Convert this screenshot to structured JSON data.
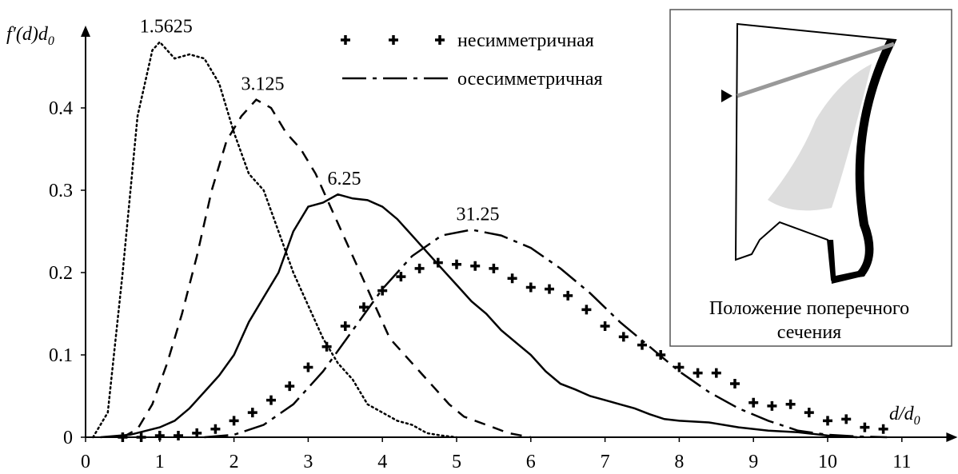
{
  "chart_data": {
    "type": "line",
    "y_label": {
      "main": "f′(d)d",
      "sub": "0"
    },
    "x_label": {
      "main": "d/d",
      "sub": "0"
    },
    "xlim": [
      0,
      11.75
    ],
    "xticks": [
      0,
      1,
      2,
      3,
      4,
      5,
      6,
      7,
      8,
      9,
      10,
      11
    ],
    "ylim": [
      0,
      0.5
    ],
    "yticks": [
      0,
      0.1,
      0.2,
      0.3,
      0.4
    ],
    "grid": false,
    "legend": [
      {
        "label": "несимметричная",
        "style": "plus"
      },
      {
        "label": "осесимметричная",
        "style": "dashdot"
      }
    ],
    "series": [
      {
        "name": "1.5625",
        "style": "dotted",
        "color": "#000000",
        "x": [
          0.1,
          0.3,
          0.5,
          0.7,
          0.9,
          1.0,
          1.2,
          1.4,
          1.6,
          1.8,
          2.0,
          2.2,
          2.4,
          2.6,
          2.8,
          3.0,
          3.2,
          3.4,
          3.6,
          3.8,
          4.0,
          4.2,
          4.4,
          4.6,
          4.8,
          5.0
        ],
        "values": [
          0,
          0.03,
          0.2,
          0.39,
          0.47,
          0.48,
          0.46,
          0.465,
          0.46,
          0.43,
          0.37,
          0.32,
          0.3,
          0.25,
          0.2,
          0.16,
          0.12,
          0.09,
          0.07,
          0.04,
          0.03,
          0.02,
          0.015,
          0.005,
          0.002,
          0
        ]
      },
      {
        "name": "3.125",
        "style": "dashed",
        "color": "#000000",
        "x": [
          0.5,
          0.7,
          0.9,
          1.1,
          1.3,
          1.5,
          1.7,
          1.9,
          2.1,
          2.3,
          2.5,
          2.7,
          2.9,
          3.1,
          3.3,
          3.5,
          3.7,
          3.9,
          4.1,
          4.3,
          4.5,
          4.7,
          4.9,
          5.1,
          5.4,
          5.7,
          6.0
        ],
        "values": [
          0,
          0.01,
          0.04,
          0.09,
          0.15,
          0.22,
          0.3,
          0.36,
          0.39,
          0.41,
          0.4,
          0.37,
          0.35,
          0.32,
          0.28,
          0.24,
          0.2,
          0.16,
          0.12,
          0.1,
          0.08,
          0.06,
          0.04,
          0.025,
          0.015,
          0.005,
          0
        ]
      },
      {
        "name": "6.25",
        "style": "solid",
        "color": "#000000",
        "x": [
          0.2,
          0.6,
          1.0,
          1.2,
          1.4,
          1.6,
          1.8,
          2.0,
          2.2,
          2.4,
          2.6,
          2.8,
          3.0,
          3.2,
          3.4,
          3.6,
          3.8,
          4.0,
          4.2,
          4.4,
          4.6,
          4.8,
          5.0,
          5.2,
          5.4,
          5.6,
          5.8,
          6.0,
          6.2,
          6.4,
          6.6,
          6.8,
          7.0,
          7.2,
          7.4,
          7.6,
          7.8,
          8.0,
          8.4,
          8.8,
          9.2,
          9.6,
          10.0,
          10.4
        ],
        "values": [
          0,
          0.003,
          0.012,
          0.02,
          0.035,
          0.055,
          0.075,
          0.1,
          0.14,
          0.17,
          0.2,
          0.25,
          0.28,
          0.285,
          0.295,
          0.29,
          0.288,
          0.28,
          0.265,
          0.245,
          0.225,
          0.205,
          0.185,
          0.165,
          0.15,
          0.13,
          0.115,
          0.1,
          0.08,
          0.065,
          0.058,
          0.05,
          0.045,
          0.04,
          0.035,
          0.028,
          0.022,
          0.02,
          0.018,
          0.012,
          0.008,
          0.006,
          0.002,
          0
        ]
      },
      {
        "name": "31.25",
        "style": "dashdot",
        "color": "#000000",
        "x": [
          1.6,
          2.0,
          2.4,
          2.8,
          3.2,
          3.6,
          4.0,
          4.4,
          4.8,
          5.2,
          5.6,
          6.0,
          6.4,
          6.8,
          7.2,
          7.6,
          8.0,
          8.4,
          8.8,
          9.2,
          9.6,
          10.0,
          10.4,
          10.8
        ],
        "values": [
          0,
          0.003,
          0.015,
          0.04,
          0.08,
          0.13,
          0.18,
          0.22,
          0.245,
          0.252,
          0.245,
          0.23,
          0.205,
          0.175,
          0.14,
          0.11,
          0.08,
          0.055,
          0.035,
          0.02,
          0.008,
          0.003,
          0.001,
          0
        ]
      },
      {
        "style": "plus",
        "color": "#000000",
        "x": [
          0.5,
          0.75,
          1.0,
          1.25,
          1.5,
          1.75,
          2.0,
          2.25,
          2.5,
          2.75,
          3.0,
          3.25,
          3.5,
          3.75,
          4.0,
          4.25,
          4.5,
          4.75,
          5.0,
          5.25,
          5.5,
          5.75,
          6.0,
          6.25,
          6.5,
          6.75,
          7.0,
          7.25,
          7.5,
          7.75,
          8.0,
          8.25,
          8.5,
          8.75,
          9.0,
          9.25,
          9.5,
          9.75,
          10.0,
          10.25,
          10.5,
          10.75
        ],
        "values": [
          0,
          0,
          0.002,
          0.002,
          0.005,
          0.01,
          0.02,
          0.03,
          0.045,
          0.062,
          0.085,
          0.11,
          0.135,
          0.158,
          0.178,
          0.195,
          0.205,
          0.212,
          0.21,
          0.208,
          0.205,
          0.193,
          0.182,
          0.18,
          0.172,
          0.155,
          0.135,
          0.122,
          0.112,
          0.1,
          0.085,
          0.078,
          0.078,
          0.065,
          0.042,
          0.038,
          0.04,
          0.03,
          0.02,
          0.022,
          0.012,
          0.01
        ]
      }
    ],
    "inset": {
      "caption": [
        "Положение поперечного",
        "сечения"
      ]
    }
  }
}
